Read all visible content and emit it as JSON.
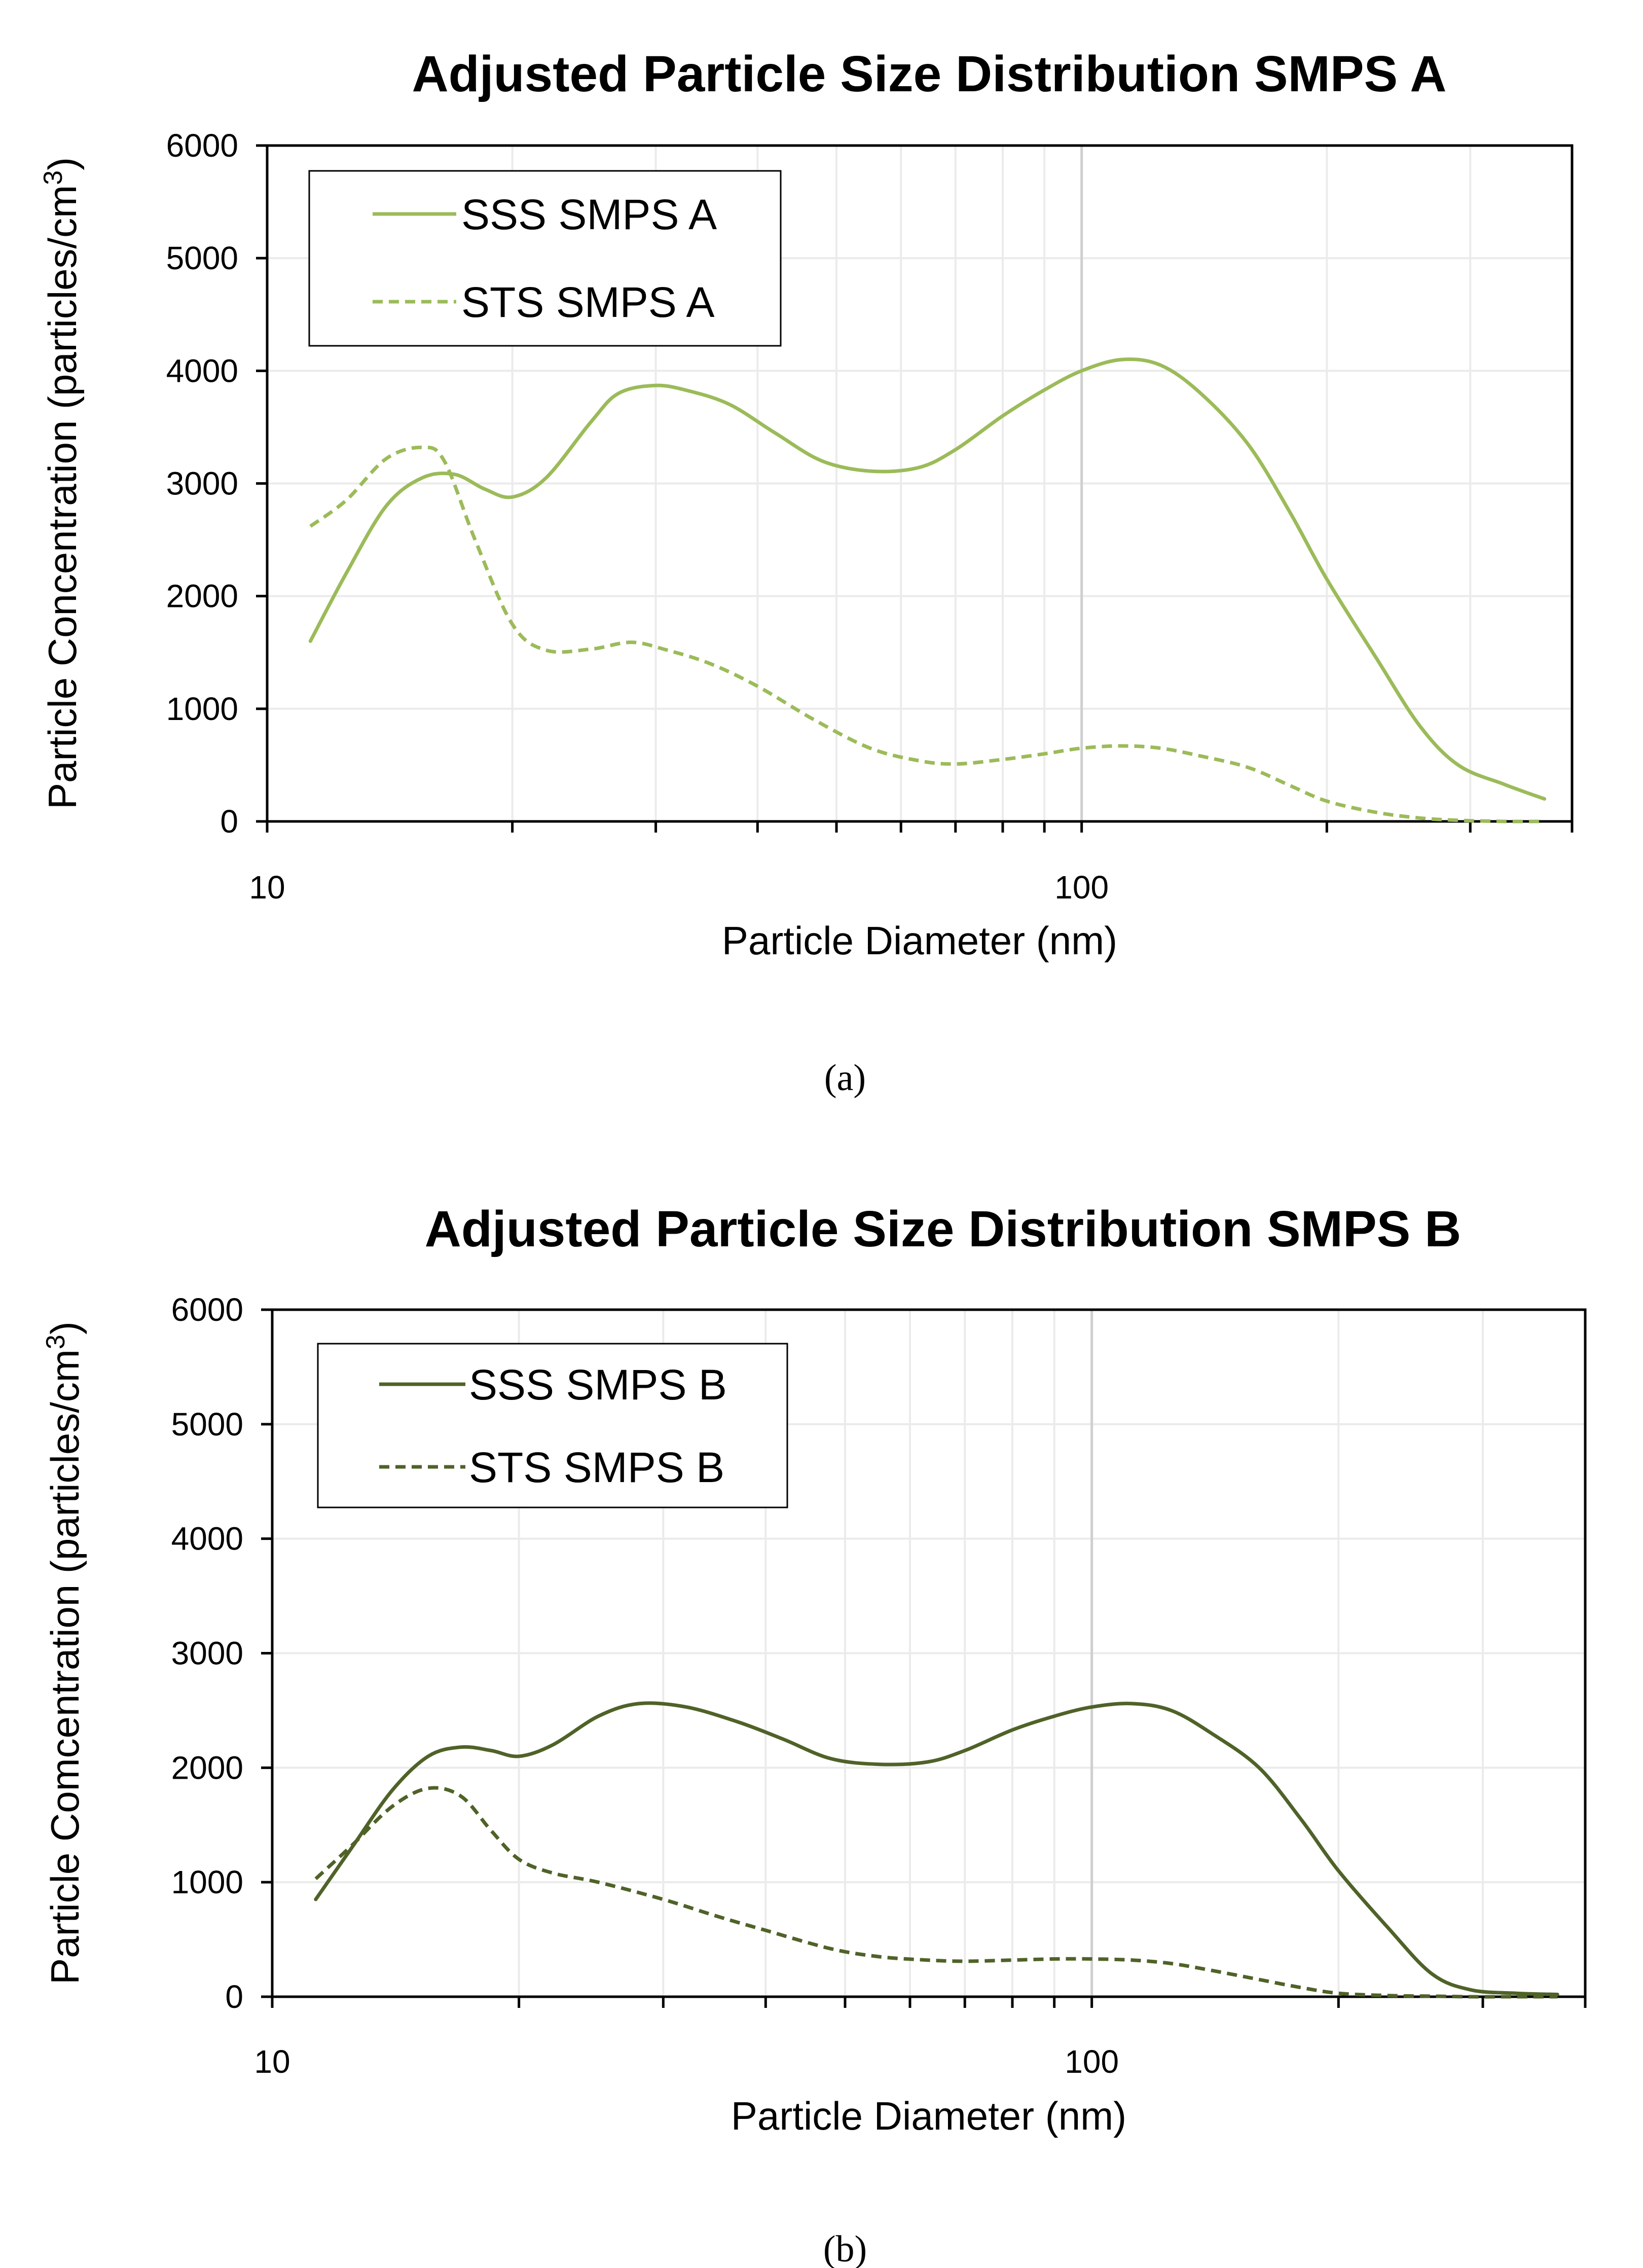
{
  "chart_data": [
    {
      "type": "line",
      "title": "Adjusted Particle Size Distribution SMPS A",
      "xlabel": "Particle Diameter (nm)",
      "ylabel": "Particle Concentration (particles/cm",
      "ylabel_sup": "3",
      "ylabel_end": ")",
      "xscale": "log",
      "xlim": [
        10,
        400
      ],
      "ylim": [
        0,
        6000
      ],
      "yticks": [
        "0",
        "1000",
        "2000",
        "3000",
        "4000",
        "5000",
        "6000"
      ],
      "xticks": [
        "10",
        "100"
      ],
      "legend_position": "top-left",
      "caption": "(a)",
      "series": [
        {
          "name": "SSS SMPS A",
          "style": "solid",
          "color": "#9bbb59",
          "x": [
            11.3,
            12.5,
            14,
            15.5,
            17,
            18.5,
            20,
            22,
            25,
            27,
            30,
            33,
            37,
            42,
            48,
            55,
            63,
            70,
            80,
            90,
            100,
            112,
            125,
            140,
            160,
            180,
            200,
            230,
            260,
            290,
            330,
            370
          ],
          "y": [
            1600,
            2200,
            2800,
            3050,
            3080,
            2950,
            2880,
            3050,
            3550,
            3800,
            3870,
            3820,
            3700,
            3450,
            3200,
            3110,
            3140,
            3300,
            3600,
            3830,
            4000,
            4100,
            4050,
            3800,
            3350,
            2750,
            2150,
            1450,
            850,
            500,
            330,
            200
          ]
        },
        {
          "name": "STS SMPS A",
          "style": "dashed",
          "color": "#9bbb59",
          "x": [
            11.3,
            12.5,
            14,
            15.5,
            16.5,
            18,
            20,
            22,
            25,
            28,
            31,
            35,
            40,
            47,
            55,
            63,
            70,
            80,
            90,
            100,
            112,
            125,
            140,
            160,
            180,
            200,
            230,
            260,
            290,
            330,
            370
          ],
          "y": [
            2620,
            2850,
            3220,
            3320,
            3200,
            2500,
            1750,
            1520,
            1530,
            1590,
            1520,
            1400,
            1200,
            900,
            650,
            540,
            510,
            550,
            600,
            650,
            670,
            650,
            580,
            480,
            320,
            180,
            80,
            30,
            10,
            0,
            0
          ]
        }
      ]
    },
    {
      "type": "line",
      "title": "Adjusted Particle Size Distribution SMPS B",
      "xlabel": "Particle Diameter (nm)",
      "ylabel": "Particle Comcentration (particles/cm",
      "ylabel_sup": "3",
      "ylabel_end": ")",
      "xscale": "log",
      "xlim": [
        10,
        400
      ],
      "ylim": [
        0,
        6000
      ],
      "yticks": [
        "0",
        "1000",
        "2000",
        "3000",
        "4000",
        "5000",
        "6000"
      ],
      "xticks": [
        "10",
        "100"
      ],
      "legend_position": "top-left",
      "caption": "(b)",
      "series": [
        {
          "name": "SSS SMPS B",
          "style": "solid",
          "color": "#4f6228",
          "x": [
            11.3,
            12.5,
            14,
            15.5,
            17,
            18.5,
            20,
            22,
            25,
            28,
            32,
            37,
            42,
            48,
            55,
            63,
            70,
            80,
            90,
            100,
            112,
            125,
            140,
            160,
            180,
            200,
            230,
            260,
            290,
            330,
            370
          ],
          "y": [
            850,
            1300,
            1800,
            2100,
            2180,
            2150,
            2100,
            2200,
            2450,
            2560,
            2530,
            2400,
            2250,
            2080,
            2030,
            2050,
            2150,
            2330,
            2450,
            2530,
            2560,
            2500,
            2300,
            2000,
            1550,
            1100,
            600,
            200,
            60,
            30,
            20
          ]
        },
        {
          "name": "STS SMPS B",
          "style": "dashed",
          "color": "#4f6228",
          "x": [
            11.3,
            12.5,
            14,
            15.5,
            17,
            18.5,
            20,
            22,
            25,
            30,
            35,
            40,
            48,
            55,
            63,
            70,
            80,
            90,
            100,
            112,
            125,
            140,
            160,
            180,
            200,
            230,
            260,
            290,
            330,
            370
          ],
          "y": [
            1030,
            1320,
            1660,
            1820,
            1750,
            1450,
            1200,
            1080,
            1000,
            850,
            700,
            580,
            420,
            350,
            320,
            310,
            320,
            330,
            330,
            320,
            290,
            230,
            150,
            80,
            30,
            10,
            5,
            0,
            0,
            0
          ]
        }
      ]
    }
  ]
}
